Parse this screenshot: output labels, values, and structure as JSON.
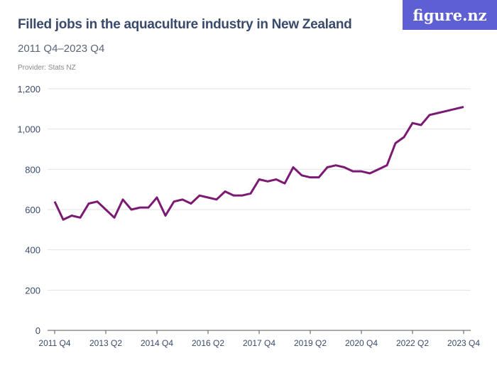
{
  "header": {
    "title": "Filled jobs in the aquaculture industry in New Zealand",
    "subtitle": "2011 Q4–2023 Q4",
    "provider": "Provider: Stats NZ",
    "logo": "figure.nz"
  },
  "chart_data": {
    "type": "line",
    "title": "Filled jobs in the aquaculture industry in New Zealand",
    "ylim": [
      0,
      1200
    ],
    "yticks": [
      0,
      200,
      400,
      600,
      800,
      1000,
      1200
    ],
    "ytick_labels": [
      "0",
      "200",
      "400",
      "600",
      "800",
      "1,000",
      "1,200"
    ],
    "xtick_labels": [
      "2011 Q4",
      "2013 Q2",
      "2014 Q4",
      "2016 Q2",
      "2017 Q4",
      "2019 Q2",
      "2020 Q4",
      "2022 Q2",
      "2023 Q4"
    ],
    "x_start": "2011 Q4",
    "x_end": "2023 Q4",
    "grid": true,
    "color": "#7b1a73",
    "values": [
      640,
      550,
      570,
      560,
      630,
      640,
      600,
      560,
      650,
      600,
      610,
      610,
      660,
      570,
      640,
      650,
      630,
      670,
      660,
      650,
      690,
      670,
      670,
      680,
      750,
      740,
      750,
      730,
      810,
      770,
      760,
      760,
      810,
      820,
      810,
      790,
      790,
      780,
      800,
      820,
      930,
      960,
      1030,
      1020,
      1070,
      1080,
      1090,
      1100,
      1110
    ]
  }
}
